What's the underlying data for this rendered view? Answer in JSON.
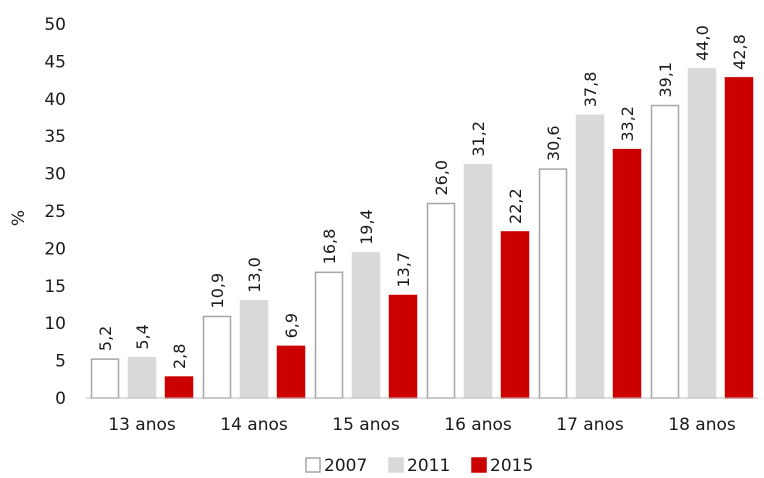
{
  "chart_data": {
    "type": "bar",
    "title": "",
    "xlabel": "",
    "ylabel": "%",
    "ylim": [
      0,
      50
    ],
    "yticks": [
      0,
      5,
      10,
      15,
      20,
      25,
      30,
      35,
      40,
      45,
      50
    ],
    "grid": false,
    "legend_position": "bottom",
    "categories": [
      "13 anos",
      "14 anos",
      "15 anos",
      "16 anos",
      "17 anos",
      "18 anos"
    ],
    "series": [
      {
        "name": "2007",
        "fill": "#ffffff",
        "stroke": "#a6a6a6",
        "values": [
          5.2,
          10.9,
          16.8,
          26.0,
          30.6,
          39.1
        ],
        "labels": [
          "5,2",
          "10,9",
          "16,8",
          "26,0",
          "30,6",
          "39,1"
        ]
      },
      {
        "name": "2011",
        "fill": "#d9d9d9",
        "stroke": "#d9d9d9",
        "values": [
          5.4,
          13.0,
          19.4,
          31.2,
          37.8,
          44.0
        ],
        "labels": [
          "5,4",
          "13,0",
          "19,4",
          "31,2",
          "37,8",
          "44,0"
        ]
      },
      {
        "name": "2015",
        "fill": "#cc0000",
        "stroke": "#cc0000",
        "values": [
          2.8,
          6.9,
          13.7,
          22.2,
          33.2,
          42.8
        ],
        "labels": [
          "2,8",
          "6,9",
          "13,7",
          "22,2",
          "33,2",
          "42,8"
        ]
      }
    ]
  }
}
